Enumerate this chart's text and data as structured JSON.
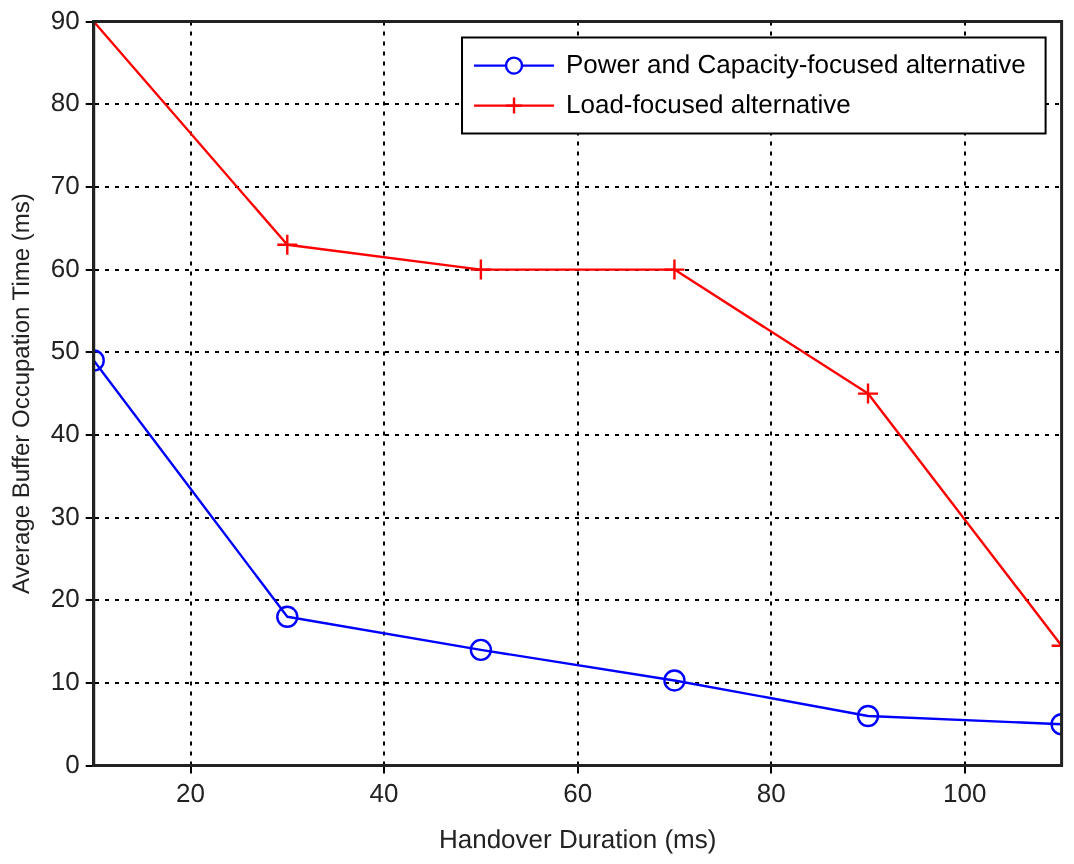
{
  "chart_data": {
    "type": "line",
    "xlabel": "Handover Duration (ms)",
    "ylabel": "Average Buffer Occupation Time (ms)",
    "x": [
      10,
      30,
      50,
      70,
      90,
      110
    ],
    "series": [
      {
        "name": "Power and Capacity-focused alternative",
        "color": "#0000ff",
        "marker": "circle",
        "values": [
          49,
          18,
          14,
          10.3,
          6,
          5
        ]
      },
      {
        "name": "Load-focused alternative",
        "color": "#ff0000",
        "marker": "cross",
        "values": [
          90,
          63,
          60,
          60,
          45,
          14.5
        ]
      }
    ],
    "xlim": [
      10,
      110
    ],
    "xticks": [
      20,
      40,
      60,
      80,
      100
    ],
    "ylim": [
      0,
      90
    ],
    "yticks": [
      0,
      10,
      20,
      30,
      40,
      50,
      60,
      70,
      80,
      90
    ],
    "grid": true,
    "legend": "top right",
    "line_style": "solid"
  }
}
